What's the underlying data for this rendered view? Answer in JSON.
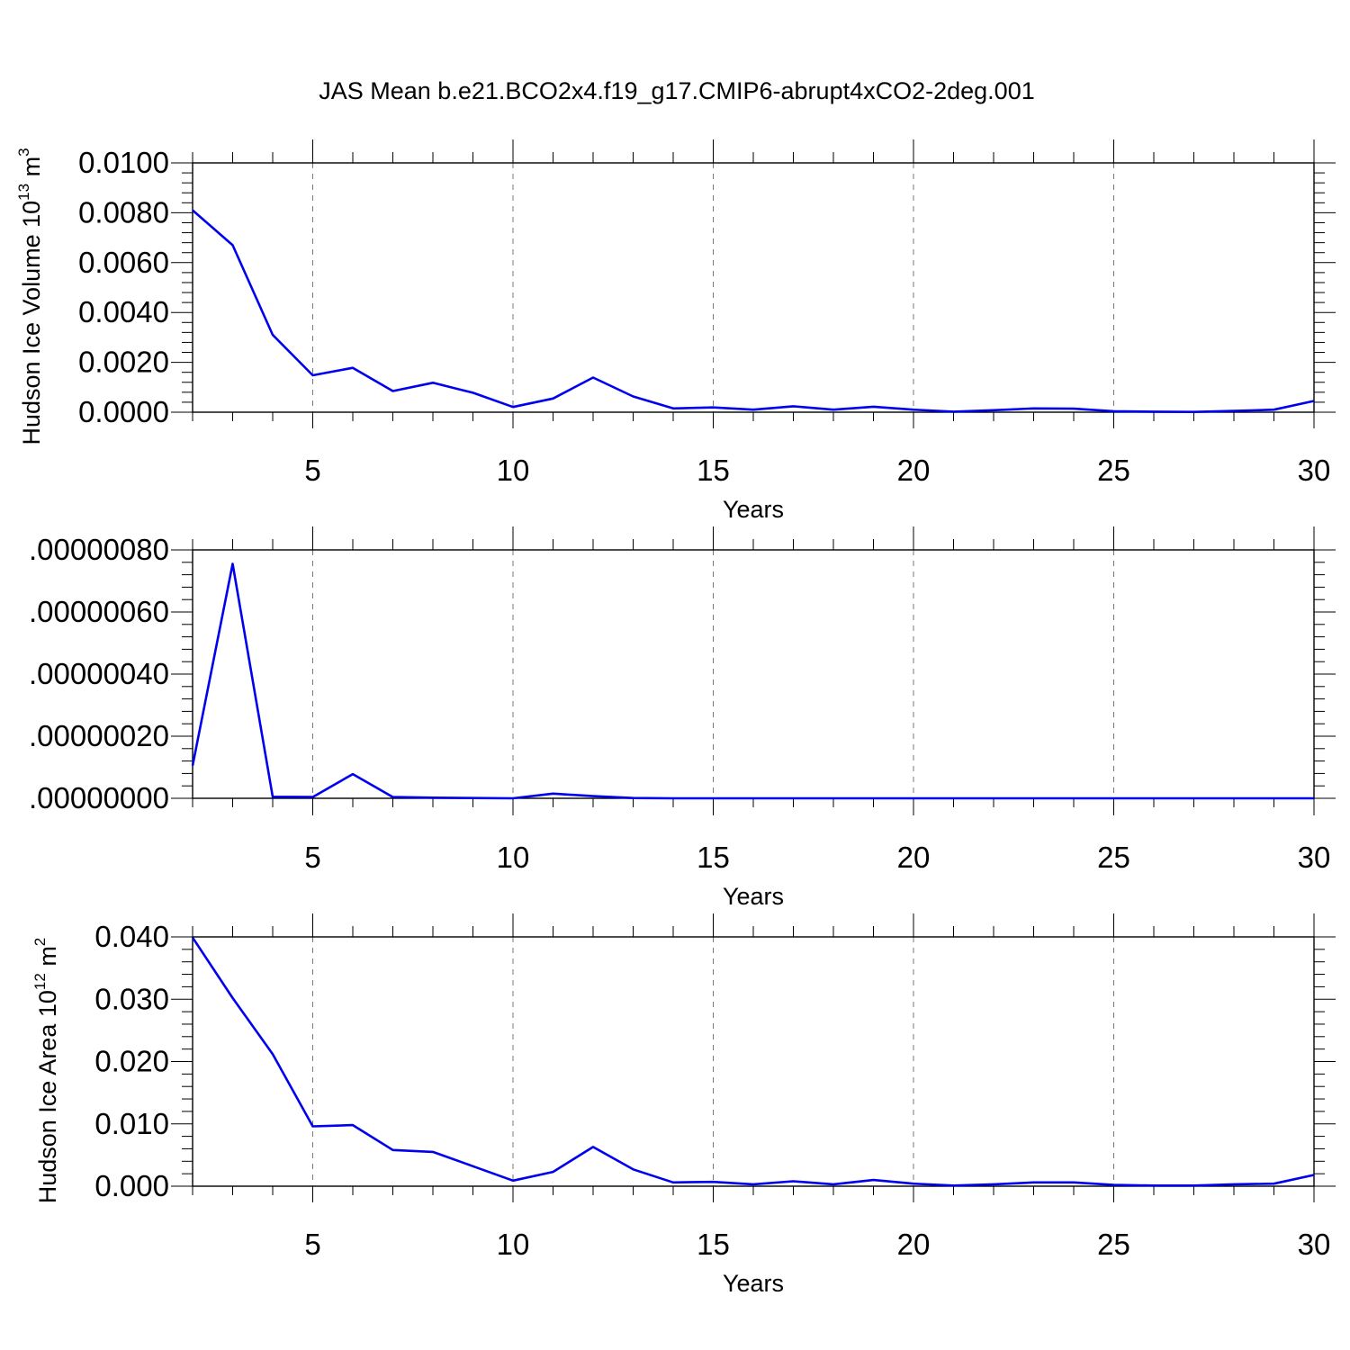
{
  "title": "JAS Mean b.e21.BCO2x4.f19_g17.CMIP6-abrupt4xCO2-2deg.001",
  "chart_data": [
    {
      "type": "line",
      "ylabel": "Hudson Ice Volume",
      "ylabel_unit_base": "10",
      "ylabel_unit_exp": "13",
      "ylabel_unit_name": "m",
      "ylabel_unit_name_exp": "3",
      "xlabel": "Years",
      "xlim": [
        2,
        30
      ],
      "ylim": [
        0,
        0.01
      ],
      "xticks": [
        5,
        10,
        15,
        20,
        25,
        30
      ],
      "xtick_labels": [
        "5",
        "10",
        "15",
        "20",
        "25",
        "30"
      ],
      "yticks": [
        0,
        0.002,
        0.004,
        0.006,
        0.008,
        0.01
      ],
      "ytick_labels": [
        "0.0000",
        "0.0020",
        "0.0040",
        "0.0060",
        "0.0080",
        "0.0100"
      ],
      "grid": "x-dashed",
      "color": "#0000ee",
      "x": [
        2,
        3,
        4,
        5,
        6,
        7,
        8,
        9,
        10,
        11,
        12,
        13,
        14,
        15,
        16,
        17,
        18,
        19,
        20,
        21,
        22,
        23,
        24,
        25,
        26,
        27,
        28,
        29,
        30
      ],
      "y": [
        0.0081,
        0.0067,
        0.0031,
        0.00148,
        0.00178,
        0.00085,
        0.00118,
        0.00078,
        0.00021,
        0.00055,
        0.00139,
        0.00063,
        0.00015,
        0.00019,
        0.0001,
        0.00024,
        0.0001,
        0.00022,
        0.0001,
        2e-05,
        8e-05,
        0.00015,
        0.00014,
        4e-05,
        2e-05,
        1e-05,
        5e-05,
        0.0001,
        0.00045
      ]
    },
    {
      "type": "line",
      "ylabel": "",
      "xlabel": "Years",
      "xlim": [
        2,
        30
      ],
      "ylim": [
        0,
        8e-07
      ],
      "xticks": [
        5,
        10,
        15,
        20,
        25,
        30
      ],
      "xtick_labels": [
        "5",
        "10",
        "15",
        "20",
        "25",
        "30"
      ],
      "yticks": [
        0,
        2e-07,
        4e-07,
        6e-07,
        8e-07
      ],
      "ytick_labels": [
        ".00000000",
        ".00000020",
        ".00000040",
        ".00000060",
        ".00000080"
      ],
      "grid": "x-dashed",
      "color": "#0000ee",
      "x": [
        2,
        3,
        4,
        5,
        6,
        7,
        8,
        9,
        10,
        11,
        12,
        13,
        14,
        15,
        16,
        17,
        18,
        19,
        20,
        21,
        22,
        23,
        24,
        25,
        26,
        27,
        28,
        29,
        30
      ],
      "y": [
        1.05e-07,
        7.55e-07,
        5e-09,
        4e-09,
        7.8e-08,
        4e-09,
        2e-09,
        1e-09,
        0.0,
        1.5e-08,
        7e-09,
        1e-09,
        0,
        0,
        0,
        0,
        0,
        0,
        0,
        0,
        0,
        0,
        0,
        0,
        0,
        0,
        0,
        0,
        0
      ]
    },
    {
      "type": "line",
      "ylabel": "Hudson Ice Area",
      "ylabel_unit_base": "10",
      "ylabel_unit_exp": "12",
      "ylabel_unit_name": "m",
      "ylabel_unit_name_exp": "2",
      "xlabel": "Years",
      "xlim": [
        2,
        30
      ],
      "ylim": [
        0,
        0.04
      ],
      "xticks": [
        5,
        10,
        15,
        20,
        25,
        30
      ],
      "xtick_labels": [
        "5",
        "10",
        "15",
        "20",
        "25",
        "30"
      ],
      "yticks": [
        0,
        0.01,
        0.02,
        0.03,
        0.04
      ],
      "ytick_labels": [
        "0.000",
        "0.010",
        "0.020",
        "0.030",
        "0.040"
      ],
      "grid": "x-dashed",
      "color": "#0000ee",
      "x": [
        2,
        3,
        4,
        5,
        6,
        7,
        8,
        9,
        10,
        11,
        12,
        13,
        14,
        15,
        16,
        17,
        18,
        19,
        20,
        21,
        22,
        23,
        24,
        25,
        26,
        27,
        28,
        29,
        30
      ],
      "y": [
        0.0399,
        0.0302,
        0.0212,
        0.0096,
        0.0098,
        0.0058,
        0.0055,
        0.0032,
        0.0009,
        0.0023,
        0.0063,
        0.0027,
        0.0006,
        0.0007,
        0.0003,
        0.0008,
        0.0003,
        0.001,
        0.0004,
        0.0001,
        0.0003,
        0.0006,
        0.0006,
        0.0002,
        0.0001,
        0.0001,
        0.0003,
        0.0004,
        0.0018
      ]
    }
  ]
}
